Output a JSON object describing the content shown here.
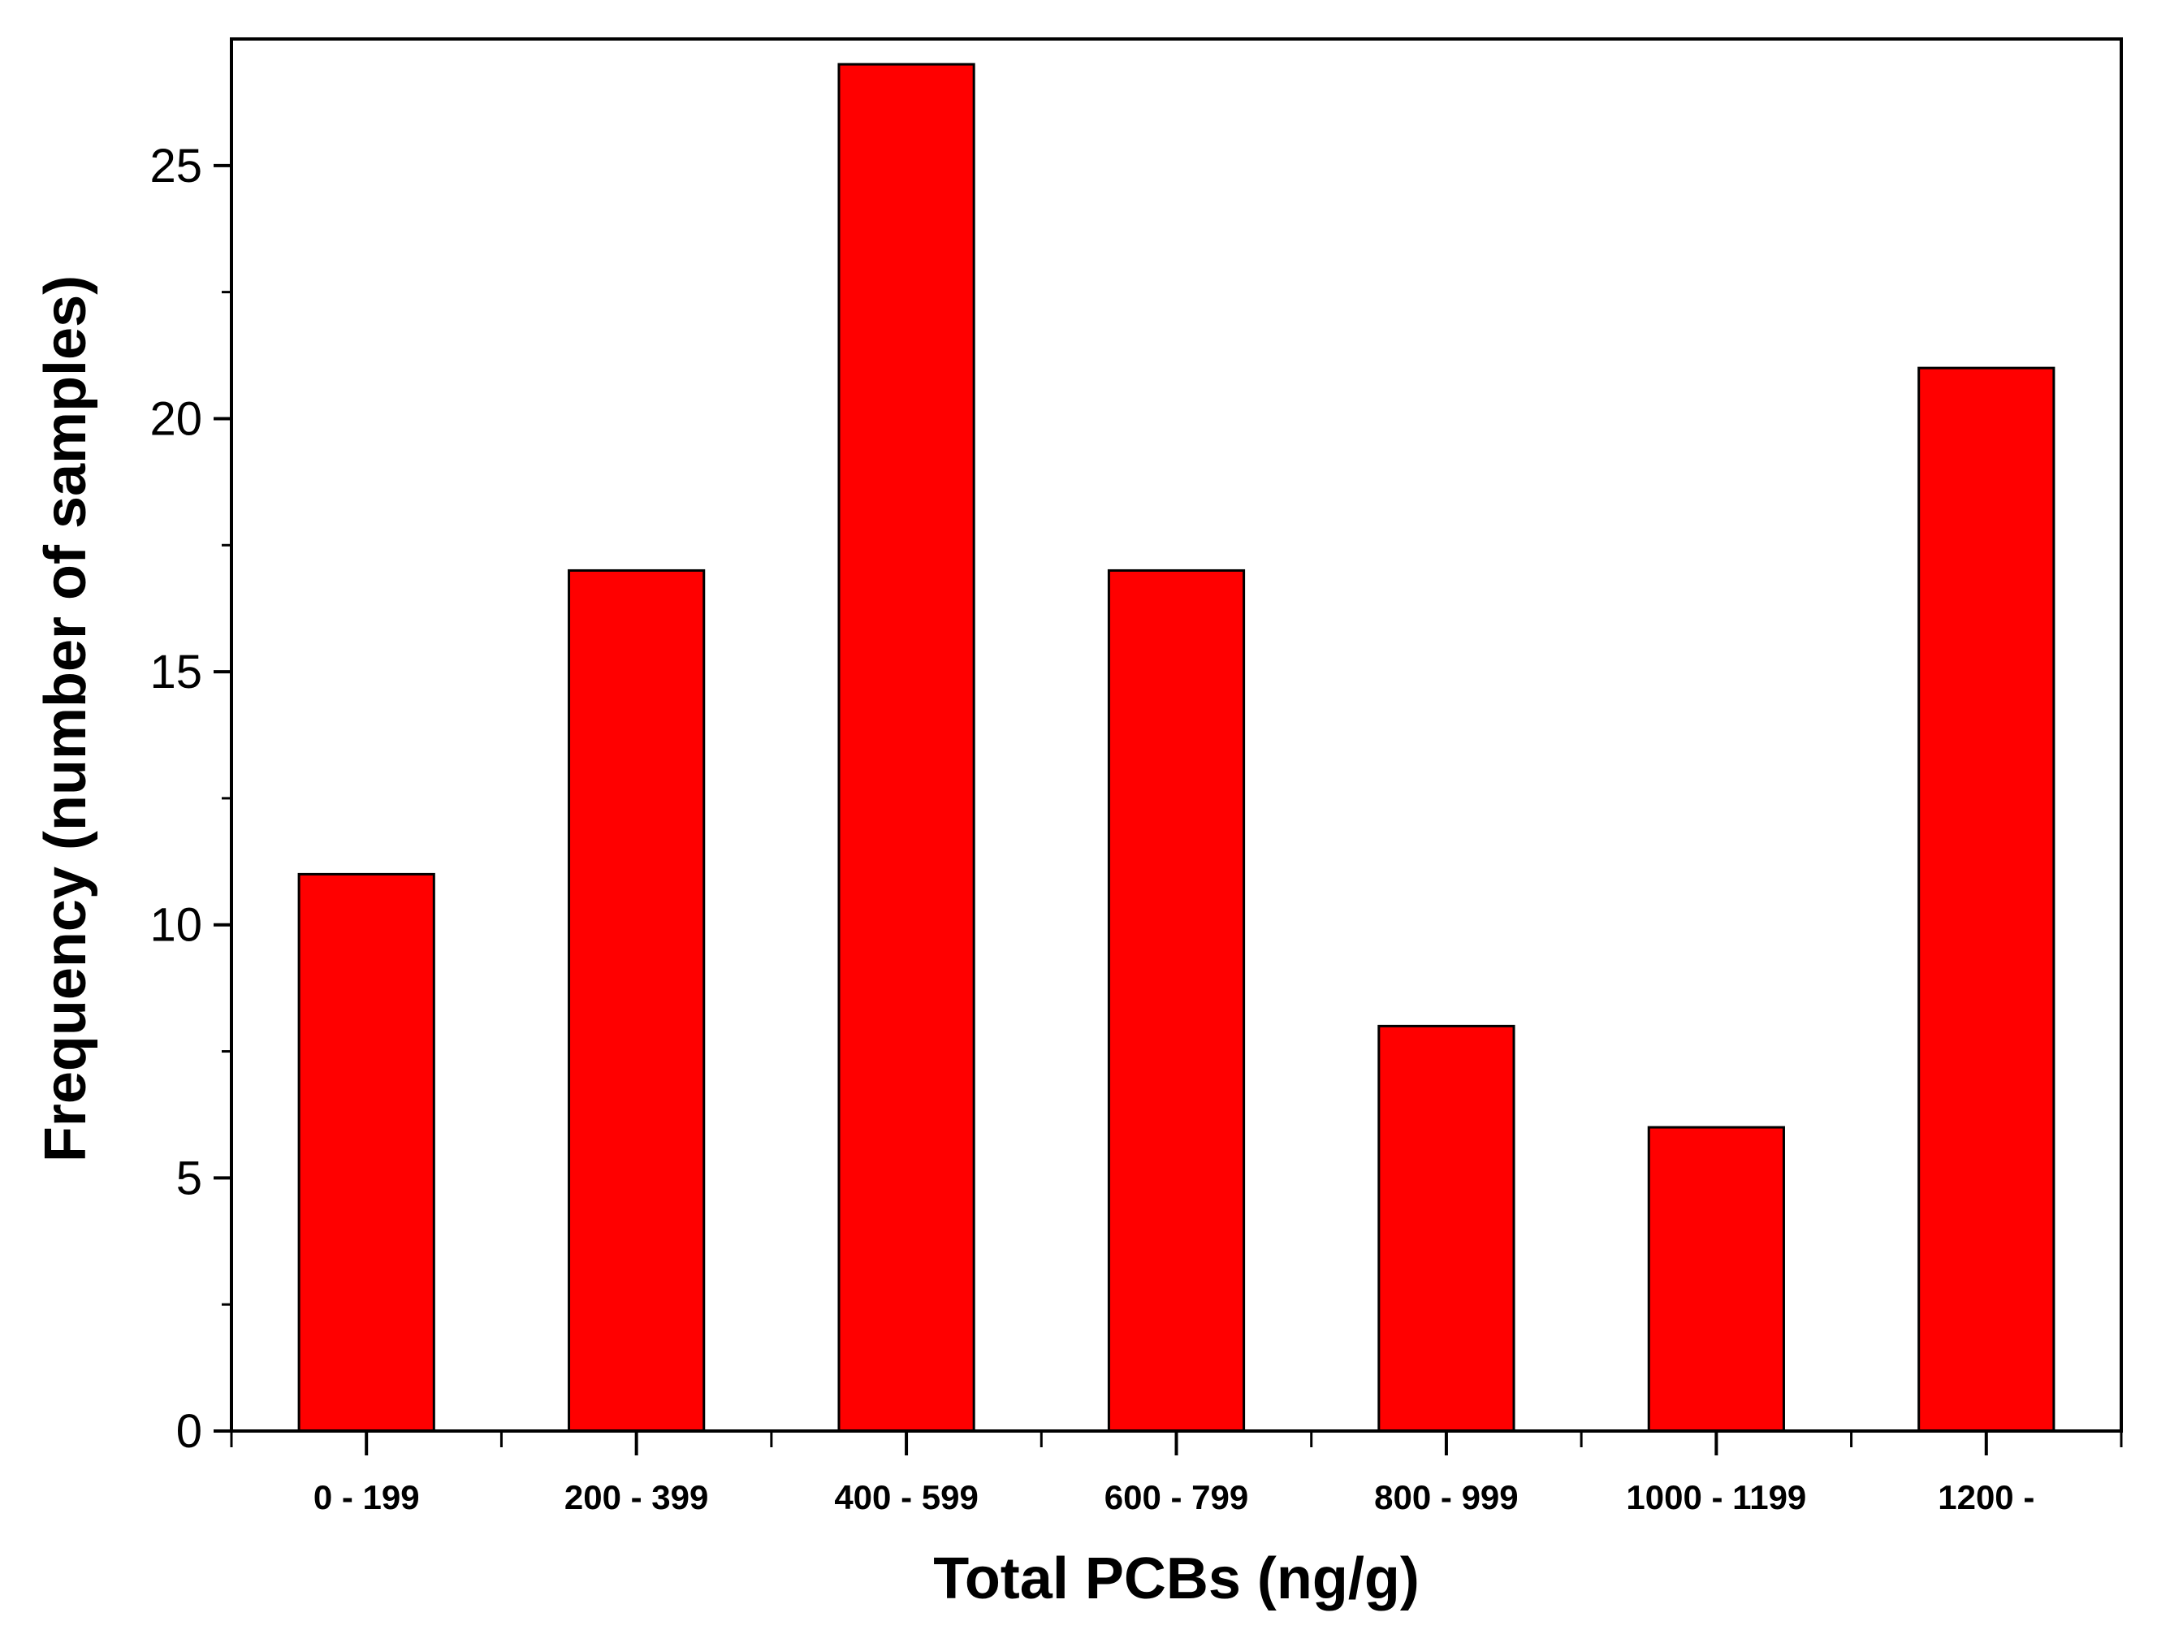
{
  "chart_data": {
    "type": "bar",
    "title": "",
    "xlabel": "Total PCBs (ng/g)",
    "ylabel": "Frequency (number of samples)",
    "categories": [
      "0 - 199",
      "200 - 399",
      "400 - 599",
      "600 - 799",
      "800 - 999",
      "1000 - 1199",
      "1200 -"
    ],
    "values": [
      11,
      17,
      27,
      17,
      8,
      6,
      21
    ],
    "ylim": [
      0,
      27.5
    ],
    "yticks": [
      0,
      5,
      10,
      15,
      20,
      25
    ],
    "y_minor_ticks": [
      2.5,
      7.5,
      12.5,
      17.5,
      22.5
    ],
    "grid": false,
    "legend": "none",
    "colors": {
      "bar_fill": "#ff0000",
      "bar_stroke": "#000000",
      "axis": "#000000",
      "background": "#ffffff"
    }
  }
}
